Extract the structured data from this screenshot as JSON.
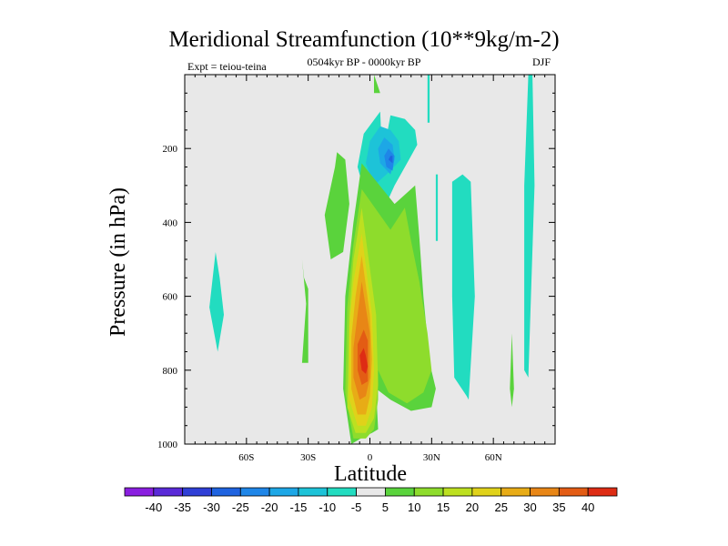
{
  "chart_data": {
    "type": "heatmap",
    "title": "Meridional Streamfunction (10**9kg/m-2)",
    "subtitle": "0504kyr BP - 0000kyr BP",
    "experiment": "Expt = teiou-teina",
    "season": "DJF",
    "xlabel": "Latitude",
    "ylabel": "Pressure (in hPa)",
    "xlim": [
      -90,
      90
    ],
    "ylim": [
      1000,
      0
    ],
    "x_ticks": [
      {
        "value": -60,
        "label": "60S"
      },
      {
        "value": -30,
        "label": "30S"
      },
      {
        "value": 0,
        "label": "0"
      },
      {
        "value": 30,
        "label": "30N"
      },
      {
        "value": 60,
        "label": "60N"
      }
    ],
    "y_ticks": [
      {
        "value": 200,
        "label": "200"
      },
      {
        "value": 400,
        "label": "400"
      },
      {
        "value": 600,
        "label": "600"
      },
      {
        "value": 800,
        "label": "800"
      },
      {
        "value": 1000,
        "label": "1000"
      }
    ],
    "background_color": "#e8e8e8",
    "colorbar": {
      "labels": [
        "-40",
        "-35",
        "-30",
        "-25",
        "-20",
        "-15",
        "-10",
        "-5",
        "5",
        "10",
        "15",
        "20",
        "25",
        "30",
        "35",
        "40"
      ],
      "colors": [
        "#8a1fe0",
        "#5a2ad8",
        "#2f3fd6",
        "#1f63e0",
        "#1f86e8",
        "#1da7e6",
        "#1dc3d8",
        "#22dcc0",
        "#e8e8e8",
        "#5ad33c",
        "#8edc2c",
        "#bde020",
        "#e0d21a",
        "#e8ac16",
        "#e88616",
        "#e35c14",
        "#de2c14"
      ]
    },
    "regions": [
      {
        "label": "5 to 10",
        "level": 5,
        "lat": [
          -17,
          -22,
          -19,
          -13,
          -10,
          -12,
          -16
        ],
        "p": [
          250,
          380,
          500,
          480,
          350,
          230,
          210
        ]
      },
      {
        "label": "-5 to -10",
        "level": -5,
        "lat": [
          -75,
          -78,
          -74,
          -71,
          -73
        ],
        "p": [
          480,
          630,
          750,
          650,
          550
        ]
      },
      {
        "label": "5 to 10",
        "level": 5,
        "lat": [
          -33,
          -31,
          -33,
          -30,
          -30,
          -32
        ],
        "p": [
          500,
          620,
          780,
          780,
          580,
          550
        ]
      },
      {
        "label": "5 to 10",
        "level": 5,
        "lat": [
          2,
          2,
          5
        ],
        "p": [
          0,
          50,
          50
        ]
      },
      {
        "label": "-5 to -10",
        "level": -5,
        "lat": [
          6,
          5,
          -3,
          -6,
          -2,
          3,
          12,
          19,
          23,
          22,
          17,
          10
        ],
        "p": [
          230,
          100,
          160,
          250,
          330,
          410,
          300,
          230,
          190,
          150,
          120,
          110
        ]
      },
      {
        "label": "-10 to -15",
        "level": -10,
        "lat": [
          5,
          0,
          -2,
          2,
          10,
          15,
          14,
          10
        ],
        "p": [
          140,
          180,
          240,
          300,
          260,
          230,
          180,
          150
        ]
      },
      {
        "label": "-15 to -20",
        "level": -15,
        "lat": [
          7,
          4,
          5,
          10,
          12,
          11
        ],
        "p": [
          170,
          200,
          240,
          270,
          230,
          190
        ]
      },
      {
        "label": "-20 to -25",
        "level": -20,
        "lat": [
          9,
          7,
          8,
          11,
          12
        ],
        "p": [
          200,
          220,
          250,
          260,
          220
        ]
      },
      {
        "label": "-25 to -30",
        "level": -25,
        "lat": [
          10,
          9,
          11,
          11
        ],
        "p": [
          220,
          230,
          240,
          220
        ]
      },
      {
        "label": "5 to 10",
        "level": 5,
        "lat": [
          -4,
          -8,
          -12,
          -13,
          -9,
          -3,
          1,
          4,
          3,
          10,
          20,
          30,
          32,
          29,
          26,
          24,
          22,
          12
        ],
        "p": [
          240,
          400,
          600,
          850,
          1000,
          980,
          970,
          960,
          850,
          880,
          910,
          900,
          850,
          780,
          600,
          440,
          300,
          350
        ]
      },
      {
        "label": "10 to 15",
        "level": 10,
        "lat": [
          -4,
          -8,
          -11,
          -12,
          -8,
          -2,
          2,
          4,
          4,
          9,
          18,
          26,
          30,
          28,
          24,
          20,
          17,
          10
        ],
        "p": [
          310,
          460,
          630,
          860,
          985,
          985,
          960,
          880,
          800,
          860,
          890,
          860,
          800,
          700,
          560,
          450,
          360,
          420
        ]
      },
      {
        "label": "15 to 20",
        "level": 15,
        "lat": [
          -4,
          -8,
          -10,
          -11,
          -7,
          -2,
          2,
          4,
          3
        ],
        "p": [
          360,
          500,
          650,
          900,
          970,
          970,
          930,
          840,
          650
        ]
      },
      {
        "label": "20 to 25",
        "level": 20,
        "lat": [
          -4,
          -8,
          -10,
          -10,
          -6,
          -2,
          1,
          2,
          1
        ],
        "p": [
          430,
          560,
          680,
          880,
          950,
          950,
          900,
          800,
          650
        ]
      },
      {
        "label": "25 to 30",
        "level": 25,
        "lat": [
          -4,
          -7,
          -9,
          -9,
          -6,
          -2,
          0,
          1,
          0
        ],
        "p": [
          490,
          600,
          710,
          850,
          920,
          920,
          870,
          770,
          650
        ]
      },
      {
        "label": "30 to 35",
        "level": 30,
        "lat": [
          -4,
          -6,
          -8,
          -8,
          -5,
          -2,
          0,
          0
        ],
        "p": [
          560,
          650,
          740,
          820,
          880,
          870,
          820,
          700
        ]
      },
      {
        "label": "35 to 40",
        "level": 35,
        "lat": [
          -3,
          -6,
          -6,
          -4,
          -1,
          -1
        ],
        "p": [
          690,
          730,
          800,
          840,
          830,
          720
        ]
      },
      {
        "label": "40 to 45",
        "level": 40,
        "lat": [
          -3,
          -5,
          -4,
          -2,
          -1,
          -2
        ],
        "p": [
          740,
          760,
          800,
          810,
          790,
          760
        ]
      },
      {
        "label": "-5 to -10",
        "level": -5,
        "lat": [
          32,
          32,
          33,
          33
        ],
        "p": [
          270,
          450,
          450,
          270
        ]
      },
      {
        "label": "-5 to -10",
        "level": -5,
        "lat": [
          40,
          40,
          41,
          47,
          48,
          51,
          49,
          45
        ],
        "p": [
          290,
          600,
          820,
          870,
          880,
          600,
          290,
          270
        ]
      },
      {
        "label": "-5 to -10",
        "level": -5,
        "lat": [
          28,
          28,
          29,
          29
        ],
        "p": [
          0,
          130,
          130,
          0
        ]
      },
      {
        "label": "-5 to -10",
        "level": -5,
        "lat": [
          77,
          75,
          75,
          77,
          80,
          79
        ],
        "p": [
          0,
          300,
          800,
          820,
          300,
          0
        ]
      },
      {
        "label": "5 to 10",
        "level": 5,
        "lat": [
          69,
          68,
          69,
          70
        ],
        "p": [
          700,
          850,
          900,
          850
        ]
      }
    ]
  }
}
